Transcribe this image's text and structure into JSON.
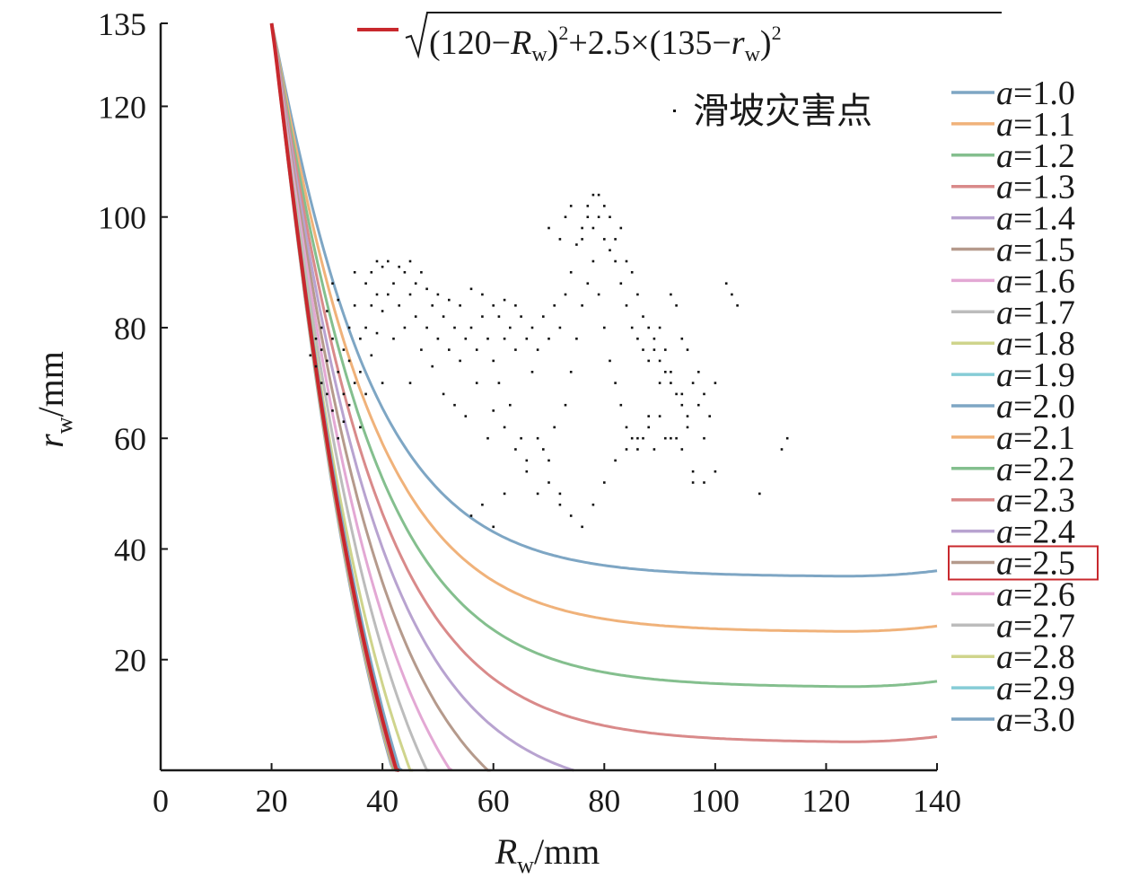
{
  "chart_data": {
    "type": "line",
    "xlabel_main": "R",
    "xlabel_sub": "w",
    "xlabel_unit": "/mm",
    "ylabel_main": "r",
    "ylabel_sub": "w",
    "ylabel_unit": "/mm",
    "xlim": [
      0,
      140
    ],
    "ylim": [
      0,
      135
    ],
    "x_ticks": [
      0,
      20,
      40,
      60,
      80,
      100,
      120,
      140
    ],
    "y_ticks": [
      20,
      40,
      60,
      80,
      100,
      120,
      135
    ],
    "highlight": {
      "a": 2.5,
      "color": "#c8282d",
      "formula": {
        "p1": "(120−",
        "R": "R",
        "w1": "w",
        "p2": ")",
        "sq1": "2",
        "p3": "+2.5×(135−",
        "r": "r",
        "w2": "w",
        "p4": ")",
        "sq2": "2"
      }
    },
    "series": [
      {
        "name": "a=1.0",
        "prefix": "a",
        "value": "=1.0",
        "a": 1.0,
        "color": "#7ea6c4"
      },
      {
        "name": "a=1.1",
        "prefix": "a",
        "value": "=1.1",
        "a": 1.1,
        "color": "#f0b27a"
      },
      {
        "name": "a=1.2",
        "prefix": "a",
        "value": "=1.2",
        "a": 1.2,
        "color": "#84bf8e"
      },
      {
        "name": "a=1.3",
        "prefix": "a",
        "value": "=1.3",
        "a": 1.3,
        "color": "#d98a8a"
      },
      {
        "name": "a=1.4",
        "prefix": "a",
        "value": "=1.4",
        "a": 1.4,
        "color": "#b8a3d0"
      },
      {
        "name": "a=1.5",
        "prefix": "a",
        "value": "=1.5",
        "a": 1.5,
        "color": "#b59a8c"
      },
      {
        "name": "a=1.6",
        "prefix": "a",
        "value": "=1.6",
        "a": 1.6,
        "color": "#e3a8d4"
      },
      {
        "name": "a=1.7",
        "prefix": "a",
        "value": "=1.7",
        "a": 1.7,
        "color": "#bcbcbc"
      },
      {
        "name": "a=1.8",
        "prefix": "a",
        "value": "=1.8",
        "a": 1.8,
        "color": "#cfd48c"
      },
      {
        "name": "a=1.9",
        "prefix": "a",
        "value": "=1.9",
        "a": 1.9,
        "color": "#86ccd6"
      },
      {
        "name": "a=2.0",
        "prefix": "a",
        "value": "=2.0",
        "a": 2.0,
        "color": "#7ea6c4"
      },
      {
        "name": "a=2.1",
        "prefix": "a",
        "value": "=2.1",
        "a": 2.1,
        "color": "#f0b27a"
      },
      {
        "name": "a=2.2",
        "prefix": "a",
        "value": "=2.2",
        "a": 2.2,
        "color": "#84bf8e"
      },
      {
        "name": "a=2.3",
        "prefix": "a",
        "value": "=2.3",
        "a": 2.3,
        "color": "#d98a8a"
      },
      {
        "name": "a=2.4",
        "prefix": "a",
        "value": "=2.4",
        "a": 2.4,
        "color": "#b8a3d0"
      },
      {
        "name": "a=2.5",
        "prefix": "a",
        "value": "=2.5",
        "a": 2.5,
        "color": "#b59a8c",
        "boxed": true
      },
      {
        "name": "a=2.6",
        "prefix": "a",
        "value": "=2.6",
        "a": 2.6,
        "color": "#e3a8d4"
      },
      {
        "name": "a=2.7",
        "prefix": "a",
        "value": "=2.7",
        "a": 2.7,
        "color": "#bcbcbc"
      },
      {
        "name": "a=2.8",
        "prefix": "a",
        "value": "=2.8",
        "a": 2.8,
        "color": "#cfd48c"
      },
      {
        "name": "a=2.9",
        "prefix": "a",
        "value": "=2.9",
        "a": 2.9,
        "color": "#86ccd6"
      },
      {
        "name": "a=3.0",
        "prefix": "a",
        "value": "=3.0",
        "a": 3.0,
        "color": "#7ea6c4"
      }
    ],
    "scatter": {
      "label": "滑坡灾害点",
      "color": "#111111",
      "points": [
        [
          27,
          75
        ],
        [
          28,
          78
        ],
        [
          28,
          73
        ],
        [
          29,
          80
        ],
        [
          29,
          70
        ],
        [
          29,
          76
        ],
        [
          30,
          83
        ],
        [
          30,
          68
        ],
        [
          30,
          74
        ],
        [
          31,
          78
        ],
        [
          31,
          65
        ],
        [
          31,
          88
        ],
        [
          32,
          72
        ],
        [
          32,
          60
        ],
        [
          32,
          85
        ],
        [
          33,
          76
        ],
        [
          33,
          68
        ],
        [
          33,
          63
        ],
        [
          34,
          80
        ],
        [
          34,
          74
        ],
        [
          34,
          66
        ],
        [
          35,
          90
        ],
        [
          35,
          70
        ],
        [
          35,
          84
        ],
        [
          36,
          78
        ],
        [
          36,
          72
        ],
        [
          36,
          62
        ],
        [
          37,
          88
        ],
        [
          37,
          80
        ],
        [
          37,
          68
        ],
        [
          38,
          90
        ],
        [
          38,
          84
        ],
        [
          38,
          75
        ],
        [
          39,
          92
        ],
        [
          39,
          86
        ],
        [
          39,
          79
        ],
        [
          40,
          91
        ],
        [
          40,
          83
        ],
        [
          40,
          70
        ],
        [
          41,
          92
        ],
        [
          41,
          86
        ],
        [
          42,
          88
        ],
        [
          42,
          78
        ],
        [
          43,
          91
        ],
        [
          43,
          84
        ],
        [
          44,
          90
        ],
        [
          44,
          80
        ],
        [
          45,
          92
        ],
        [
          45,
          86
        ],
        [
          45,
          70
        ],
        [
          46,
          88
        ],
        [
          46,
          82
        ],
        [
          47,
          90
        ],
        [
          47,
          76
        ],
        [
          48,
          87
        ],
        [
          48,
          80
        ],
        [
          49,
          84
        ],
        [
          49,
          73
        ],
        [
          50,
          86
        ],
        [
          50,
          78
        ],
        [
          51,
          82
        ],
        [
          51,
          68
        ],
        [
          52,
          85
        ],
        [
          52,
          76
        ],
        [
          53,
          80
        ],
        [
          53,
          66
        ],
        [
          54,
          84
        ],
        [
          54,
          74
        ],
        [
          55,
          78
        ],
        [
          55,
          64
        ],
        [
          56,
          87
        ],
        [
          56,
          80
        ],
        [
          57,
          76
        ],
        [
          57,
          70
        ],
        [
          58,
          86
        ],
        [
          58,
          82
        ],
        [
          59,
          78
        ],
        [
          59,
          60
        ],
        [
          60,
          84
        ],
        [
          60,
          74
        ],
        [
          61,
          82
        ],
        [
          61,
          70
        ],
        [
          62,
          85
        ],
        [
          62,
          78
        ],
        [
          63,
          80
        ],
        [
          63,
          66
        ],
        [
          64,
          84
        ],
        [
          64,
          76
        ],
        [
          65,
          82
        ],
        [
          65,
          60
        ],
        [
          66,
          78
        ],
        [
          66,
          54
        ],
        [
          67,
          80
        ],
        [
          67,
          72
        ],
        [
          68,
          76
        ],
        [
          68,
          50
        ],
        [
          69,
          82
        ],
        [
          69,
          58
        ],
        [
          70,
          78
        ],
        [
          70,
          52
        ],
        [
          71,
          84
        ],
        [
          71,
          62
        ],
        [
          72,
          80
        ],
        [
          72,
          48
        ],
        [
          73,
          86
        ],
        [
          73,
          66
        ],
        [
          74,
          90
        ],
        [
          74,
          72
        ],
        [
          75,
          95
        ],
        [
          75,
          78
        ],
        [
          76,
          98
        ],
        [
          76,
          84
        ],
        [
          77,
          102
        ],
        [
          77,
          88
        ],
        [
          78,
          104
        ],
        [
          78,
          92
        ],
        [
          79,
          100
        ],
        [
          79,
          86
        ],
        [
          80,
          96
        ],
        [
          80,
          80
        ],
        [
          81,
          94
        ],
        [
          81,
          74
        ],
        [
          82,
          92
        ],
        [
          82,
          70
        ],
        [
          83,
          88
        ],
        [
          83,
          66
        ],
        [
          84,
          84
        ],
        [
          84,
          62
        ],
        [
          85,
          80
        ],
        [
          85,
          60
        ],
        [
          86,
          78
        ],
        [
          86,
          58
        ],
        [
          87,
          76
        ],
        [
          87,
          60
        ],
        [
          88,
          74
        ],
        [
          88,
          64
        ],
        [
          89,
          78
        ],
        [
          89,
          58
        ],
        [
          90,
          80
        ],
        [
          90,
          70
        ],
        [
          91,
          76
        ],
        [
          91,
          60
        ],
        [
          92,
          86
        ],
        [
          92,
          72
        ],
        [
          93,
          84
        ],
        [
          93,
          60
        ],
        [
          94,
          78
        ],
        [
          94,
          68
        ],
        [
          95,
          76
        ],
        [
          95,
          62
        ],
        [
          96,
          70
        ],
        [
          96,
          52
        ],
        [
          97,
          72
        ],
        [
          97,
          66
        ],
        [
          98,
          68
        ],
        [
          98,
          60
        ],
        [
          99,
          64
        ],
        [
          100,
          70
        ],
        [
          102,
          88
        ],
        [
          103,
          86
        ],
        [
          104,
          84
        ],
        [
          108,
          50
        ],
        [
          112,
          58
        ],
        [
          113,
          60
        ],
        [
          70,
          98
        ],
        [
          72,
          96
        ],
        [
          73,
          100
        ],
        [
          74,
          102
        ],
        [
          76,
          96
        ],
        [
          77,
          100
        ],
        [
          78,
          98
        ],
        [
          79,
          104
        ],
        [
          80,
          102
        ],
        [
          81,
          100
        ],
        [
          82,
          96
        ],
        [
          83,
          98
        ],
        [
          84,
          92
        ],
        [
          85,
          90
        ],
        [
          86,
          86
        ],
        [
          87,
          82
        ],
        [
          88,
          80
        ],
        [
          89,
          76
        ],
        [
          90,
          74
        ],
        [
          91,
          72
        ],
        [
          92,
          70
        ],
        [
          93,
          68
        ],
        [
          94,
          66
        ],
        [
          95,
          64
        ],
        [
          60,
          65
        ],
        [
          62,
          62
        ],
        [
          64,
          58
        ],
        [
          66,
          56
        ],
        [
          68,
          60
        ],
        [
          70,
          56
        ],
        [
          72,
          50
        ],
        [
          74,
          46
        ],
        [
          76,
          44
        ],
        [
          78,
          48
        ],
        [
          80,
          52
        ],
        [
          82,
          56
        ],
        [
          84,
          58
        ],
        [
          86,
          60
        ],
        [
          88,
          62
        ],
        [
          90,
          64
        ],
        [
          92,
          60
        ],
        [
          94,
          58
        ],
        [
          96,
          54
        ],
        [
          98,
          52
        ],
        [
          100,
          54
        ],
        [
          56,
          46
        ],
        [
          58,
          48
        ],
        [
          60,
          44
        ],
        [
          62,
          50
        ]
      ]
    }
  }
}
